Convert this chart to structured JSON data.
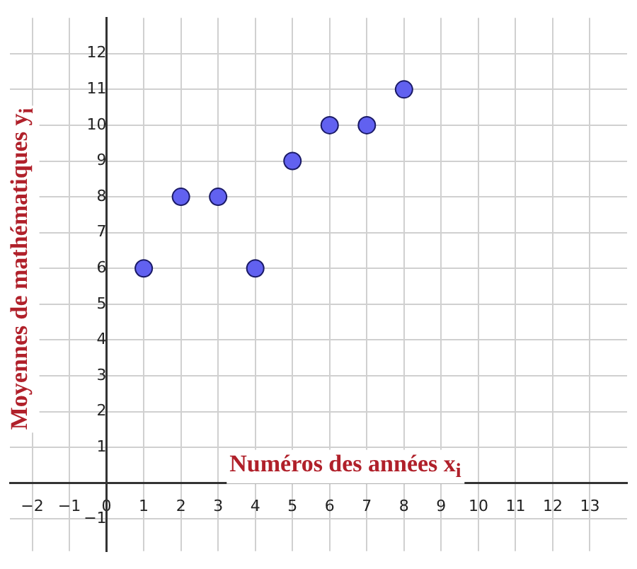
{
  "chart_data": {
    "type": "scatter",
    "xlabel": "Numéros des années x$_{i}$",
    "ylabel": "Moyennes de mathématiques y$_{i}$",
    "x": [
      1,
      2,
      3,
      4,
      5,
      6,
      7,
      8
    ],
    "series": [
      {
        "color": "#6161f0",
        "values": [
          6,
          8,
          8,
          6,
          9,
          10,
          10,
          11
        ]
      }
    ],
    "xlim": [
      -2.6,
      14
    ],
    "ylim": [
      -1.9,
      13
    ],
    "xticks": [
      {
        "value": -2,
        "label": "−2"
      },
      {
        "value": -1,
        "label": "−1"
      },
      0,
      1,
      2,
      3,
      4,
      5,
      6,
      7,
      8,
      9,
      10,
      11,
      12,
      13
    ],
    "yticks": [
      {
        "value": -1,
        "label": "−1"
      },
      {
        "value": 0,
        "label": null
      },
      1,
      2,
      3,
      4,
      5,
      6,
      7,
      8,
      9,
      10,
      11,
      12
    ],
    "grid": true,
    "marker": "circle",
    "legend": false
  }
}
